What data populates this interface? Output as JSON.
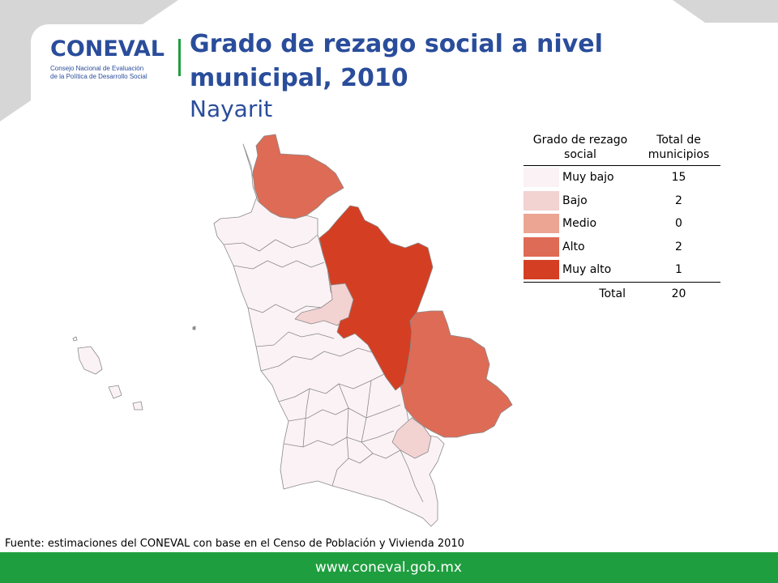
{
  "header": {
    "logo_word": "CONEVAL",
    "logo_sub_1": "Consejo Nacional de Evaluación",
    "logo_sub_2": "de la Política de Desarrollo Social",
    "title": "Grado de rezago social a nivel municipal, 2010",
    "subtitle": "Nayarit"
  },
  "legend": {
    "col1": "Grado de rezago social",
    "col2": "Total de municipios",
    "rows": [
      {
        "label": "Muy bajo",
        "count": "15",
        "color": "#fbf2f5"
      },
      {
        "label": "Bajo",
        "count": "2",
        "color": "#f3d2d2"
      },
      {
        "label": "Medio",
        "count": "0",
        "color": "#eca493"
      },
      {
        "label": "Alto",
        "count": "2",
        "color": "#de6b55"
      },
      {
        "label": "Muy alto",
        "count": "1",
        "color": "#d43f24"
      }
    ],
    "total_label": "Total",
    "total_value": "20"
  },
  "source": "Fuente: estimaciones del CONEVAL con base en el Censo de Población y Vivienda 2010",
  "footer_url": "www.coneval.gob.mx",
  "colors": {
    "brand_blue": "#2a4d9b",
    "brand_green": "#1f9e3f",
    "background_gray": "#d6d6d6"
  }
}
